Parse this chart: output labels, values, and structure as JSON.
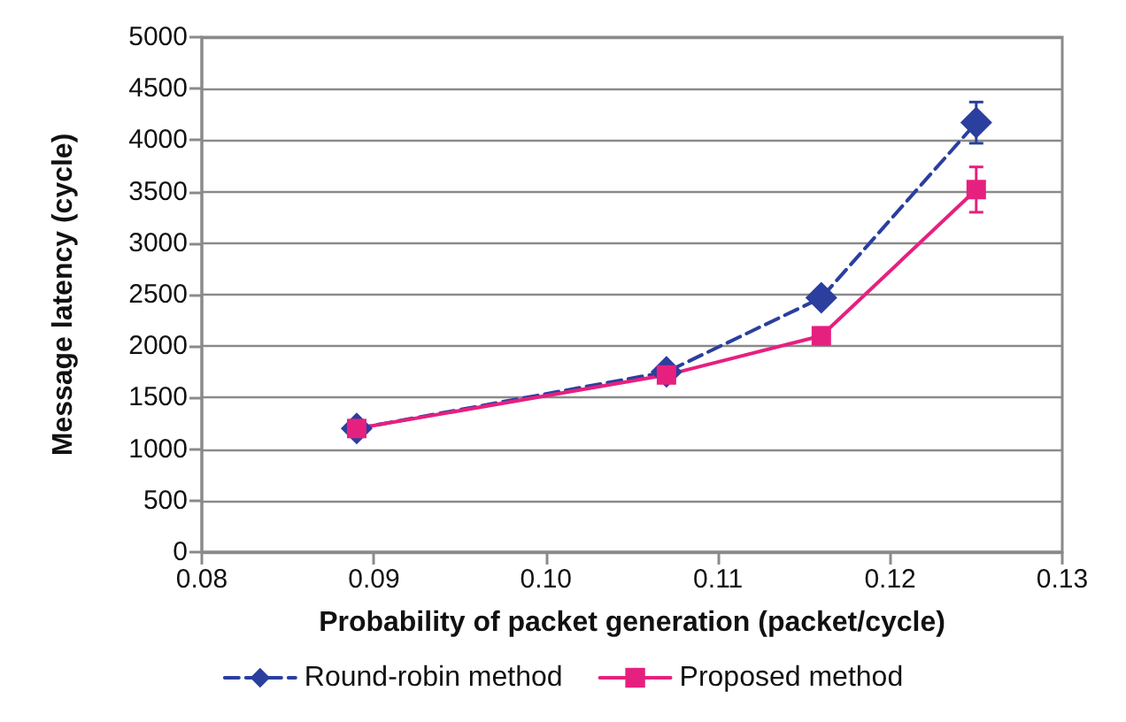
{
  "chart_data": {
    "type": "line",
    "xlabel": "Probability of packet generation (packet/cycle)",
    "ylabel": "Message latency (cycle)",
    "x": [
      0.089,
      0.107,
      0.116,
      0.125
    ],
    "series": [
      {
        "name": "Round-robin method",
        "color": "#2a3f9e",
        "values": [
          1200,
          1750,
          2470,
          4170
        ],
        "errors": [
          null,
          null,
          null,
          200
        ],
        "marker": "diamond",
        "line_style": "dashed"
      },
      {
        "name": "Proposed method",
        "color": "#e6207f",
        "values": [
          1200,
          1720,
          2100,
          3520
        ],
        "errors": [
          null,
          null,
          80,
          220
        ],
        "marker": "square",
        "line_style": "solid"
      }
    ],
    "xlim": [
      0.08,
      0.13
    ],
    "xticks": [
      {
        "value": 0.08,
        "label": "0.08"
      },
      {
        "value": 0.09,
        "label": "0.09"
      },
      {
        "value": 0.1,
        "label": "0.10"
      },
      {
        "value": 0.11,
        "label": "0.11"
      },
      {
        "value": 0.12,
        "label": "0.12"
      },
      {
        "value": 0.13,
        "label": "0.13"
      }
    ],
    "ylim": [
      0,
      5000
    ],
    "yticks": [
      0,
      500,
      1000,
      1500,
      2000,
      2500,
      3000,
      3500,
      4000,
      4500,
      5000
    ],
    "grid": "y",
    "legend": "bottom"
  }
}
